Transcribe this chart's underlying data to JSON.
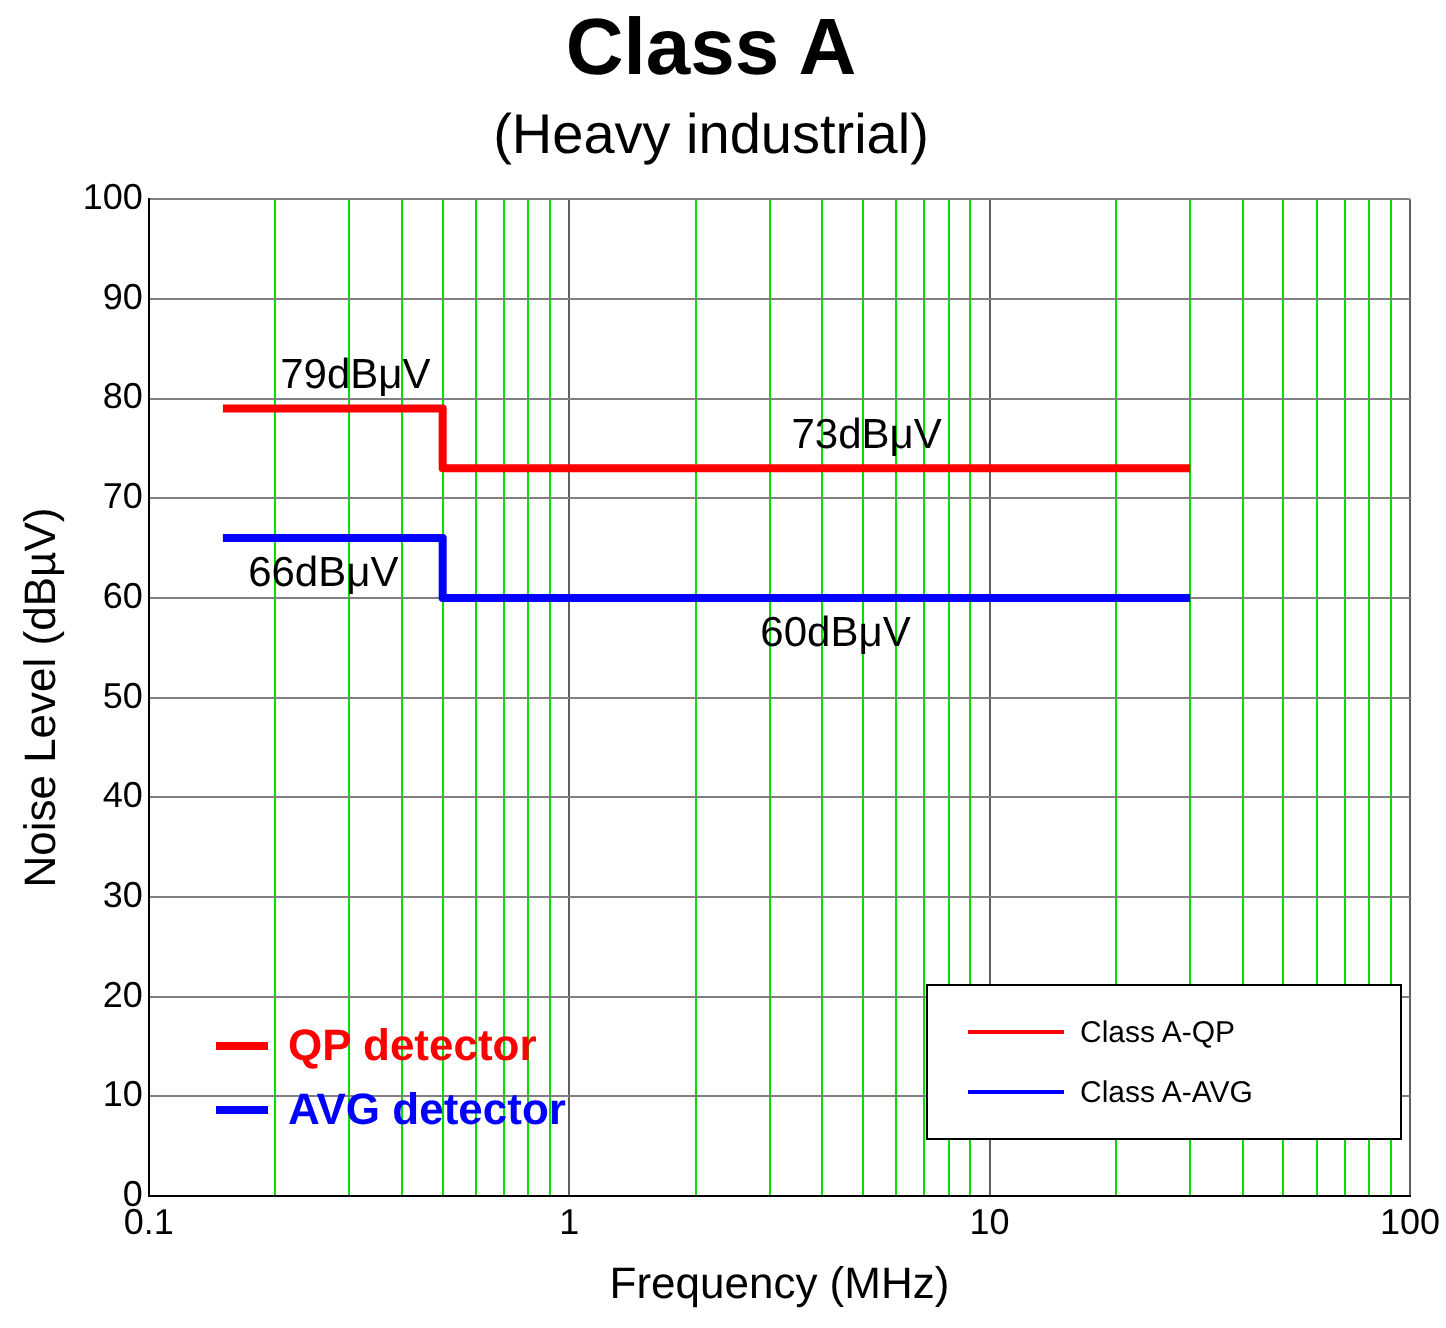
{
  "chart_data": {
    "type": "step",
    "title": "Class A",
    "subtitle": "(Heavy industrial)",
    "xlabel": "Frequency (MHz)",
    "ylabel": "Noise Level (dBµV)",
    "log": "x",
    "grid": true,
    "legend": "bottom right",
    "xlim": [
      0.1,
      100
    ],
    "xticks": [
      0.1,
      {
        "value": 0.2,
        "label": null
      },
      {
        "value": 0.3,
        "label": null
      },
      {
        "value": 0.4,
        "label": null
      },
      {
        "value": 0.5,
        "label": null
      },
      {
        "value": 0.6,
        "label": null
      },
      {
        "value": 0.7,
        "label": null
      },
      {
        "value": 0.8,
        "label": null
      },
      {
        "value": 0.9,
        "label": null
      },
      1,
      {
        "value": 2,
        "label": null
      },
      {
        "value": 3,
        "label": null
      },
      {
        "value": 4,
        "label": null
      },
      {
        "value": 5,
        "label": null
      },
      {
        "value": 6,
        "label": null
      },
      {
        "value": 7,
        "label": null
      },
      {
        "value": 8,
        "label": null
      },
      {
        "value": 9,
        "label": null
      },
      10,
      {
        "value": 20,
        "label": null
      },
      {
        "value": 30,
        "label": null
      },
      {
        "value": 40,
        "label": null
      },
      {
        "value": 50,
        "label": null
      },
      {
        "value": 60,
        "label": null
      },
      {
        "value": 70,
        "label": null
      },
      {
        "value": 80,
        "label": null
      },
      {
        "value": 90,
        "label": null
      },
      100
    ],
    "ylim": [
      0,
      100
    ],
    "yticks": [
      0,
      10,
      20,
      30,
      40,
      50,
      60,
      70,
      80,
      90,
      100
    ],
    "series": [
      {
        "name": "Class A-QP",
        "color": "#ff0000",
        "x": [
          0.15,
          0.5,
          30
        ],
        "values": [
          79,
          73,
          73
        ]
      },
      {
        "name": "Class A-AVG",
        "color": "#0000ff",
        "x": [
          0.15,
          0.5,
          30
        ],
        "values": [
          66,
          60,
          60
        ]
      }
    ],
    "annotations": [
      {
        "text": "79dBμV",
        "x": 0.31,
        "y": 79
      },
      {
        "text": "73dBμV",
        "x": 5.1,
        "y": 73
      },
      {
        "text": "66dBμV",
        "x": 0.26,
        "y": 66
      },
      {
        "text": "60dBμV",
        "x": 4.3,
        "y": 60
      },
      "QP detector",
      "AVG detector"
    ]
  }
}
